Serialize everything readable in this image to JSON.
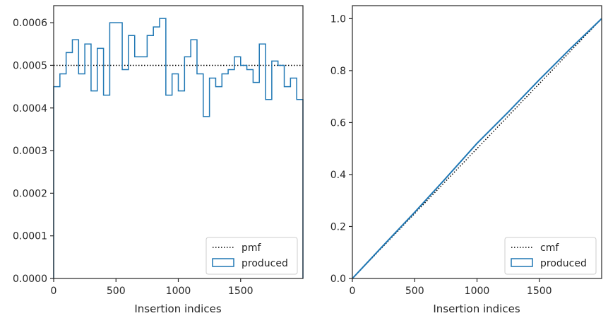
{
  "chart_data": [
    {
      "type": "histogram",
      "xlabel": "Insertion indices",
      "ylabel": "",
      "xlim": [
        0,
        2000
      ],
      "ylim": [
        0,
        0.00064
      ],
      "xticks": [
        0,
        500,
        1000,
        1500
      ],
      "xtick_labels": [
        "0",
        "500",
        "1000",
        "1500"
      ],
      "yticks": [
        0,
        0.0001,
        0.0002,
        0.0003,
        0.0004,
        0.0005,
        0.0006
      ],
      "ytick_labels": [
        "0.0000",
        "0.0001",
        "0.0002",
        "0.0003",
        "0.0004",
        "0.0005",
        "0.0006"
      ],
      "legend_position": "lower-right",
      "reference": {
        "name": "pmf",
        "style": "dotted",
        "color": "#000000",
        "y": 0.0005
      },
      "histogram": {
        "name": "produced",
        "color": "#1f77b4",
        "bin_width": 50,
        "bin_start": 0,
        "values": [
          0.00045,
          0.00048,
          0.00053,
          0.00056,
          0.00048,
          0.00055,
          0.00044,
          0.00054,
          0.00043,
          0.0006,
          0.0006,
          0.00049,
          0.00057,
          0.00052,
          0.00052,
          0.00057,
          0.00059,
          0.00061,
          0.00043,
          0.00048,
          0.00044,
          0.00052,
          0.00056,
          0.00048,
          0.00038,
          0.00047,
          0.00045,
          0.00048,
          0.00049,
          0.00052,
          0.0005,
          0.00049,
          0.00046,
          0.00055,
          0.00042,
          0.00051,
          0.0005,
          0.00045,
          0.00047,
          0.00042
        ]
      }
    },
    {
      "type": "step",
      "xlabel": "Insertion indices",
      "ylabel": "",
      "xlim": [
        0,
        2000
      ],
      "ylim": [
        0,
        1.05
      ],
      "xticks": [
        0,
        500,
        1000,
        1500
      ],
      "xtick_labels": [
        "0",
        "500",
        "1000",
        "1500"
      ],
      "yticks": [
        0,
        0.2,
        0.4,
        0.6,
        0.8,
        1.0
      ],
      "ytick_labels": [
        "0.0",
        "0.2",
        "0.4",
        "0.6",
        "0.8",
        "1.0"
      ],
      "legend_position": "lower-right",
      "reference": {
        "name": "cmf",
        "style": "dotted",
        "color": "#000000",
        "from": [
          0,
          0
        ],
        "to": [
          2000,
          1.0
        ]
      },
      "cumulative": {
        "name": "produced",
        "color": "#1f77b4",
        "x": [
          0,
          250,
          500,
          750,
          1000,
          1250,
          1500,
          1750,
          2000
        ],
        "y": [
          0.0,
          0.128,
          0.255,
          0.386,
          0.52,
          0.64,
          0.765,
          0.885,
          1.0
        ]
      }
    }
  ]
}
